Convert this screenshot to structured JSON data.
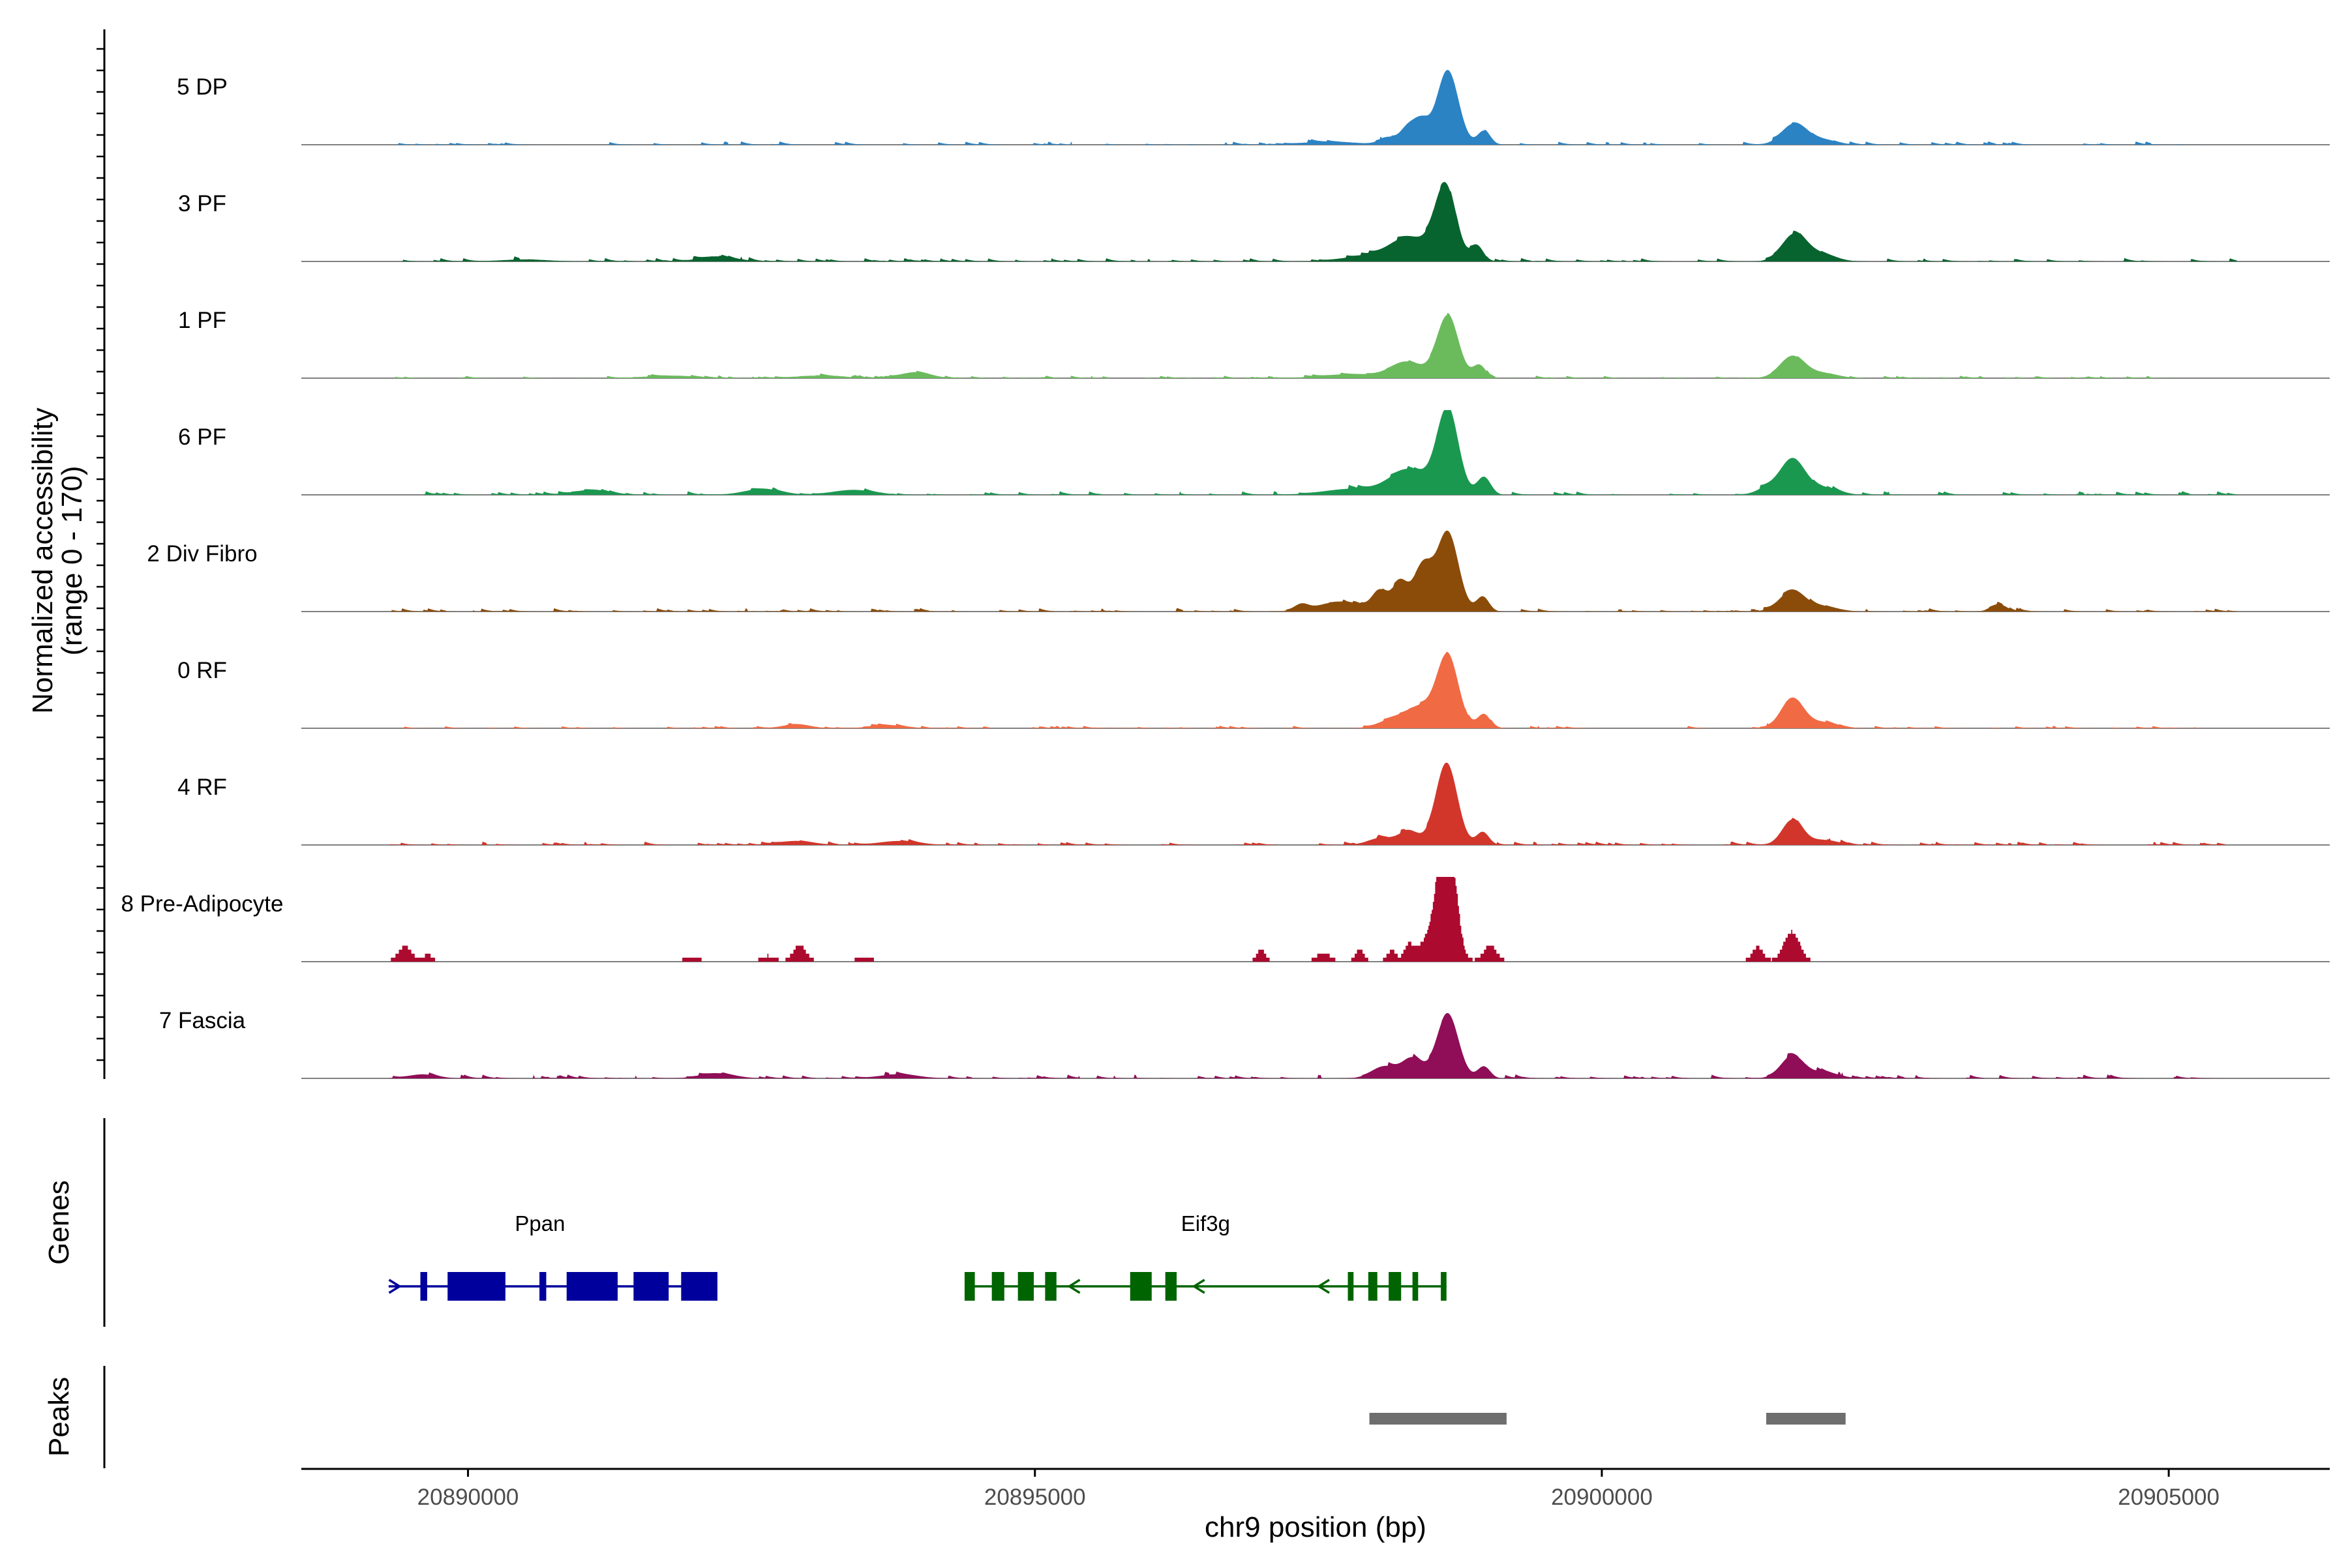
{
  "chart_data": {
    "type": "area",
    "title": "",
    "ylabel_line1": "Normalized accessibility",
    "ylabel_line2": "(range 0 - 170)",
    "y_range": [
      0,
      170
    ],
    "xlabel": "chr9 position (bp)",
    "xlim": [
      20888530,
      20906420
    ],
    "x_ticks": [
      20890000,
      20895000,
      20900000,
      20905000
    ],
    "x_tick_labels": [
      "20890000",
      "20895000",
      "20900000",
      "20905000"
    ],
    "track_labels": {
      "genes": "Genes",
      "peaks": "Peaks"
    },
    "series": [
      {
        "name": "5 DP",
        "color": "#2b83c4",
        "noise": 7,
        "start": 20889300,
        "end": 20905300,
        "peaks": [
          [
            20898640,
            150,
            95
          ],
          [
            20898400,
            48,
            70
          ],
          [
            20898280,
            28,
            60
          ],
          [
            20898960,
            28,
            55
          ],
          [
            20898120,
            14,
            80
          ],
          [
            20897600,
            6,
            250
          ],
          [
            20901700,
            42,
            110
          ],
          [
            20901950,
            10,
            120
          ]
        ]
      },
      {
        "name": "3 PF",
        "color": "#08642f",
        "noise": 7,
        "start": 20889300,
        "end": 20905600,
        "peaks": [
          [
            20898620,
            148,
            95
          ],
          [
            20898300,
            48,
            170
          ],
          [
            20898900,
            30,
            55
          ],
          [
            20897900,
            10,
            200
          ],
          [
            20901700,
            55,
            110
          ],
          [
            20901950,
            14,
            120
          ],
          [
            20892200,
            10,
            150
          ],
          [
            20890500,
            4,
            200
          ]
        ]
      },
      {
        "name": "1 PF",
        "color": "#6bbb5d",
        "noise": 5,
        "start": 20889300,
        "end": 20905500,
        "peaks": [
          [
            20898640,
            125,
            95
          ],
          [
            20898280,
            32,
            140
          ],
          [
            20898920,
            26,
            55
          ],
          [
            20897800,
            8,
            260
          ],
          [
            20901680,
            44,
            110
          ],
          [
            20901950,
            10,
            130
          ],
          [
            20893950,
            12,
            130
          ],
          [
            20893100,
            5,
            200
          ],
          [
            20891800,
            5,
            220
          ]
        ]
      },
      {
        "name": "6 PF",
        "color": "#1b9850",
        "noise": 8,
        "start": 20889300,
        "end": 20905600,
        "peaks": [
          [
            20898640,
            170,
            95
          ],
          [
            20898300,
            50,
            170
          ],
          [
            20898960,
            36,
            60
          ],
          [
            20897800,
            12,
            250
          ],
          [
            20901680,
            72,
            110
          ],
          [
            20901450,
            12,
            90
          ],
          [
            20901950,
            14,
            130
          ],
          [
            20891100,
            10,
            150
          ],
          [
            20892600,
            12,
            160
          ],
          [
            20893400,
            10,
            180
          ]
        ]
      },
      {
        "name": "2 Div Fibro",
        "color": "#8b4c0a",
        "noise": 7,
        "start": 20889300,
        "end": 20905600,
        "peaks": [
          [
            20898640,
            160,
            95
          ],
          [
            20898420,
            90,
            80
          ],
          [
            20898220,
            58,
            70
          ],
          [
            20898040,
            38,
            65
          ],
          [
            20898950,
            30,
            55
          ],
          [
            20897700,
            20,
            200
          ],
          [
            20901680,
            42,
            110
          ],
          [
            20901950,
            10,
            130
          ],
          [
            20903500,
            14,
            70
          ],
          [
            20897350,
            12,
            60
          ]
        ]
      },
      {
        "name": "0 RF",
        "color": "#f06a44",
        "noise": 5,
        "start": 20889300,
        "end": 20905500,
        "peaks": [
          [
            20898640,
            145,
            95
          ],
          [
            20898400,
            40,
            120
          ],
          [
            20898160,
            18,
            120
          ],
          [
            20898960,
            28,
            55
          ],
          [
            20901680,
            60,
            100
          ],
          [
            20901950,
            12,
            130
          ],
          [
            20892900,
            8,
            120
          ],
          [
            20893700,
            6,
            150
          ]
        ]
      },
      {
        "name": "4 RF",
        "color": "#d2362b",
        "noise": 7,
        "start": 20889300,
        "end": 20905500,
        "peaks": [
          [
            20898630,
            165,
            95
          ],
          [
            20898300,
            28,
            90
          ],
          [
            20898050,
            14,
            110
          ],
          [
            20898950,
            26,
            55
          ],
          [
            20901680,
            50,
            90
          ],
          [
            20901950,
            10,
            130
          ],
          [
            20892900,
            8,
            150
          ],
          [
            20893800,
            8,
            170
          ]
        ]
      },
      {
        "name": "8 Pre-Adipocyte",
        "color": "#ac0a2e",
        "noise": 0,
        "start": 20889300,
        "end": 20902200,
        "peaks": [
          [
            20898600,
            158,
            55
          ],
          [
            20898700,
            120,
            50
          ],
          [
            20898550,
            70,
            120
          ],
          [
            20899020,
            32,
            60
          ],
          [
            20898300,
            30,
            40
          ],
          [
            20898150,
            22,
            40
          ],
          [
            20897870,
            25,
            40
          ],
          [
            20897550,
            18,
            60
          ],
          [
            20901680,
            60,
            70
          ],
          [
            20901380,
            30,
            50
          ],
          [
            20889450,
            30,
            60
          ],
          [
            20889650,
            15,
            40
          ],
          [
            20892930,
            32,
            60
          ],
          [
            20892650,
            12,
            60
          ],
          [
            20897000,
            25,
            40
          ],
          [
            20891980,
            10,
            60
          ],
          [
            20893500,
            10,
            60
          ]
        ]
      },
      {
        "name": "7 Fascia",
        "color": "#8f0e57",
        "noise": 8,
        "start": 20889300,
        "end": 20905600,
        "peaks": [
          [
            20898640,
            130,
            95
          ],
          [
            20898330,
            40,
            90
          ],
          [
            20898080,
            24,
            110
          ],
          [
            20898960,
            24,
            55
          ],
          [
            20901680,
            45,
            100
          ],
          [
            20901950,
            12,
            130
          ],
          [
            20892200,
            10,
            150
          ],
          [
            20893800,
            8,
            170
          ],
          [
            20889600,
            8,
            120
          ]
        ]
      }
    ],
    "genes": [
      {
        "name": "Ppan",
        "color": "#00009c",
        "strand": "+",
        "start": 20889300,
        "end": 20892200,
        "arrow_x": [
          20889350
        ],
        "exons": [
          [
            20889580,
            20889640
          ],
          [
            20889820,
            20890330
          ],
          [
            20890630,
            20890690
          ],
          [
            20890870,
            20891320
          ],
          [
            20891460,
            20891770
          ],
          [
            20891880,
            20892200
          ]
        ]
      },
      {
        "name": "Eif3g",
        "color": "#006400",
        "strand": "-",
        "start": 20894380,
        "end": 20898630,
        "arrow_x": [
          20895350,
          20896450,
          20897550
        ],
        "exons": [
          [
            20894380,
            20894470
          ],
          [
            20894620,
            20894730
          ],
          [
            20894850,
            20894990
          ],
          [
            20895090,
            20895190
          ],
          [
            20895840,
            20896030
          ],
          [
            20896150,
            20896250
          ],
          [
            20897760,
            20897810
          ],
          [
            20897940,
            20898020
          ],
          [
            20898120,
            20898230
          ],
          [
            20898330,
            20898380
          ],
          [
            20898580,
            20898630
          ]
        ]
      }
    ],
    "peak_regions": [
      [
        20897950,
        20899160
      ],
      [
        20901450,
        20902150
      ]
    ]
  }
}
